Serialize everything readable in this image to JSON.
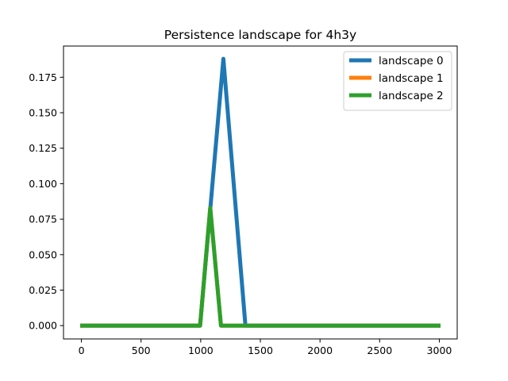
{
  "chart_data": {
    "type": "line",
    "title": "Persistence landscape for 4h3y",
    "xlabel": "",
    "ylabel": "",
    "xlim": [
      -150,
      3150
    ],
    "ylim": [
      -0.0094,
      0.197
    ],
    "xticks": [
      0,
      500,
      1000,
      1500,
      2000,
      2500,
      3000
    ],
    "xtick_labels": [
      "0",
      "500",
      "1000",
      "1500",
      "2000",
      "2500",
      "3000"
    ],
    "yticks": [
      0.0,
      0.025,
      0.05,
      0.075,
      0.1,
      0.125,
      0.15,
      0.175
    ],
    "ytick_labels": [
      "0.000",
      "0.025",
      "0.050",
      "0.075",
      "0.100",
      "0.125",
      "0.150",
      "0.175"
    ],
    "grid": false,
    "legend_position": "top-right",
    "series": [
      {
        "name": "landscape 0",
        "color": "#1f77b4",
        "x": [
          -10,
          995,
          1190,
          1375,
          3010
        ],
        "y": [
          0.0,
          0.0,
          0.188,
          0.0,
          0.0
        ]
      },
      {
        "name": "landscape 1",
        "color": "#ff7f0e",
        "x": [
          -10,
          995,
          1080,
          1170,
          3010
        ],
        "y": [
          0.0,
          0.0,
          0.083,
          0.0,
          0.0
        ]
      },
      {
        "name": "landscape 2",
        "color": "#2ca02c",
        "x": [
          -10,
          995,
          1080,
          1170,
          3010
        ],
        "y": [
          0.0,
          0.0,
          0.083,
          0.0,
          0.0
        ]
      }
    ]
  }
}
